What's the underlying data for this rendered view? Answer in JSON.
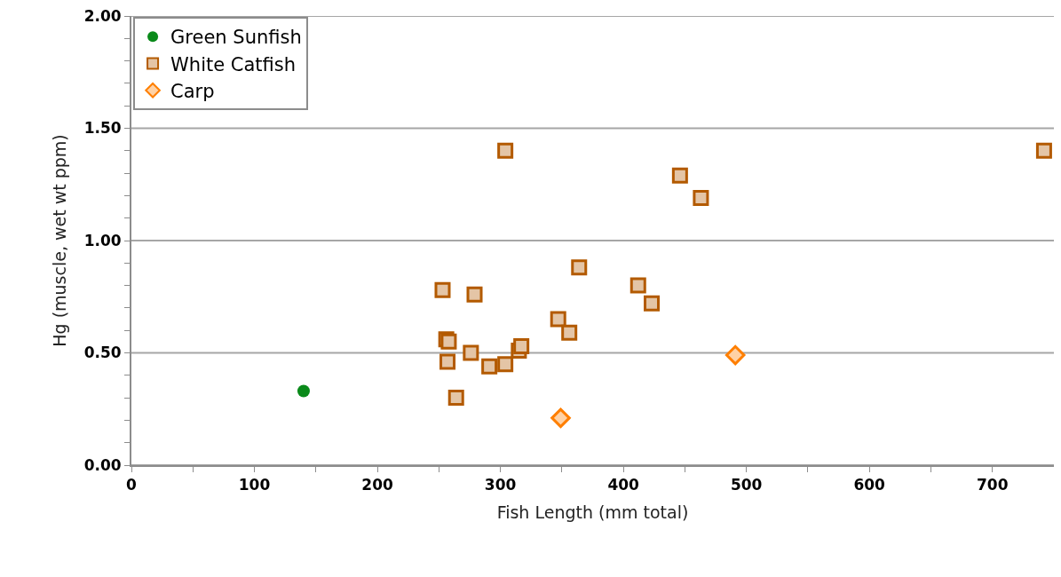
{
  "chart_data": {
    "type": "scatter",
    "xlabel": "Fish Length (mm total)",
    "ylabel": "Hg (muscle, wet wt ppm)",
    "xlim": [
      0,
      750
    ],
    "ylim": [
      0,
      2
    ],
    "xticks": [
      0,
      {
        "value": 50,
        "label": null
      },
      100,
      {
        "value": 150,
        "label": null
      },
      200,
      {
        "value": 250,
        "label": null
      },
      300,
      {
        "value": 350,
        "label": null
      },
      400,
      {
        "value": 450,
        "label": null
      },
      500,
      {
        "value": 550,
        "label": null
      },
      600,
      {
        "value": 650,
        "label": null
      },
      700
    ],
    "yticks": [
      {
        "value": 0,
        "label": "0.00"
      },
      {
        "value": 0.1,
        "label": null
      },
      {
        "value": 0.2,
        "label": null
      },
      {
        "value": 0.3,
        "label": null
      },
      {
        "value": 0.4,
        "label": null
      },
      {
        "value": 0.5,
        "label": "0.50"
      },
      {
        "value": 0.6,
        "label": null
      },
      {
        "value": 0.7,
        "label": null
      },
      {
        "value": 0.8,
        "label": null
      },
      {
        "value": 0.9,
        "label": null
      },
      {
        "value": 1.0,
        "label": "1.00"
      },
      {
        "value": 1.1,
        "label": null
      },
      {
        "value": 1.2,
        "label": null
      },
      {
        "value": 1.3,
        "label": null
      },
      {
        "value": 1.4,
        "label": null
      },
      {
        "value": 1.5,
        "label": "1.50"
      },
      {
        "value": 1.6,
        "label": null
      },
      {
        "value": 1.7,
        "label": null
      },
      {
        "value": 1.8,
        "label": null
      },
      {
        "value": 1.9,
        "label": null
      },
      {
        "value": 2.0,
        "label": "2.00"
      }
    ],
    "grid": "y",
    "legend": "top left",
    "series": [
      {
        "name": "Green Sunfish",
        "color": "#0a8a1a",
        "marker": "circle",
        "x": [
          140
        ],
        "values": [
          0.33
        ]
      },
      {
        "name": "White Catfish",
        "color": "#b35a00",
        "marker": "square",
        "x": [
          253,
          279,
          256,
          258,
          257,
          264,
          276,
          291,
          304,
          315,
          317,
          304,
          446,
          463,
          742,
          364,
          412,
          423,
          347,
          356
        ],
        "values": [
          0.78,
          0.76,
          0.56,
          0.55,
          0.46,
          0.3,
          0.5,
          0.44,
          0.45,
          0.51,
          0.53,
          1.4,
          1.29,
          1.19,
          1.4,
          0.88,
          0.8,
          0.72,
          0.65,
          0.59
        ]
      },
      {
        "name": "Carp",
        "color": "#ff7f00",
        "marker": "diamond",
        "x": [
          491,
          349
        ],
        "values": [
          0.49,
          0.21
        ]
      }
    ]
  }
}
